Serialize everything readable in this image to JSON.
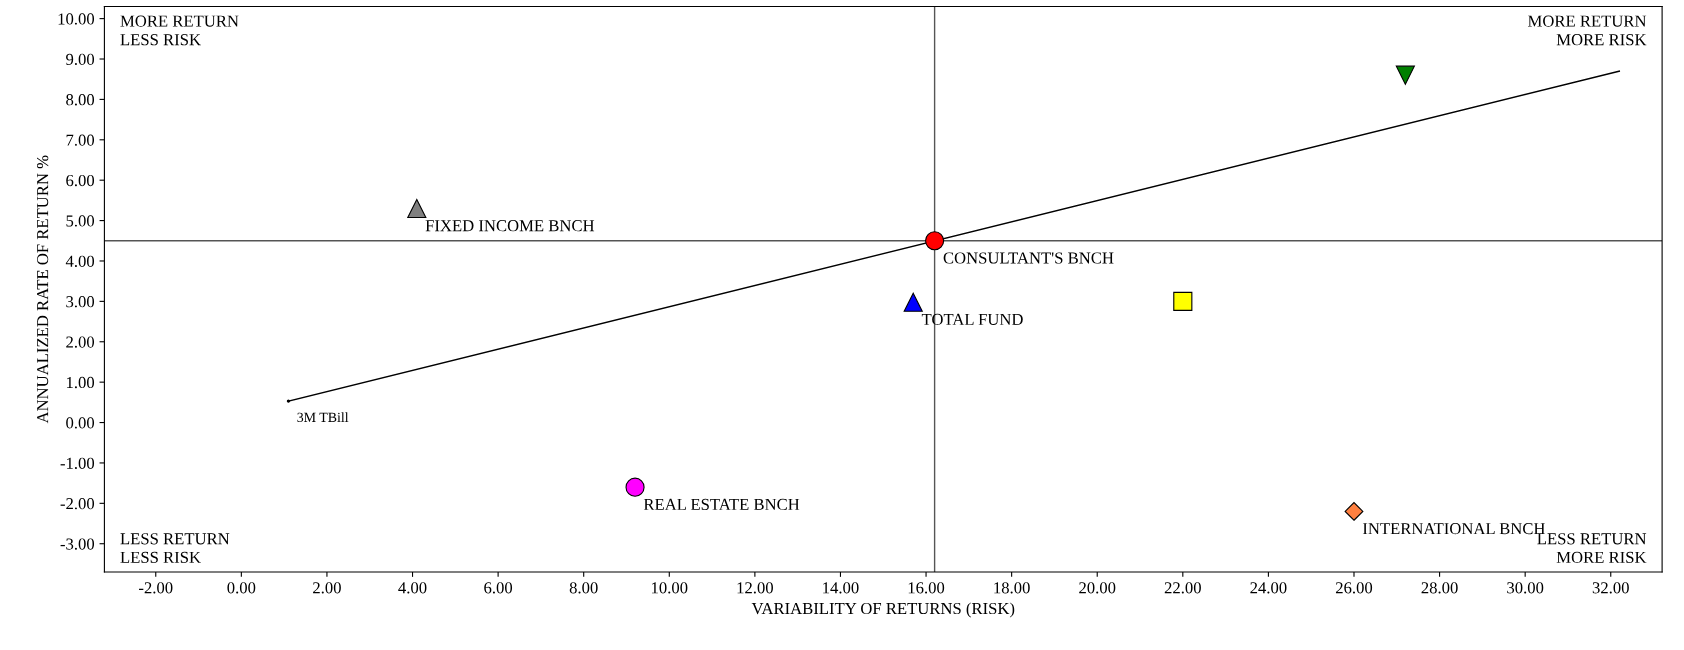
{
  "chart_data": {
    "type": "scatter",
    "xlabel": "VARIABILITY OF RETURNS (RISK)",
    "ylabel": "ANNUALIZED RATE OF RETURN %",
    "xlim": [
      -3.2,
      33.2
    ],
    "ylim": [
      -3.7,
      10.3
    ],
    "xticks": [
      {
        "value": -2,
        "label": "-2.00"
      },
      {
        "value": 0,
        "label": "0.00"
      },
      {
        "value": 2,
        "label": "2.00"
      },
      {
        "value": 4,
        "label": "4.00"
      },
      {
        "value": 6,
        "label": "6.00"
      },
      {
        "value": 8,
        "label": "8.00"
      },
      {
        "value": 10,
        "label": "10.00"
      },
      {
        "value": 12,
        "label": "12.00"
      },
      {
        "value": 14,
        "label": "14.00"
      },
      {
        "value": 16,
        "label": "16.00"
      },
      {
        "value": 18,
        "label": "18.00"
      },
      {
        "value": 20,
        "label": "20.00"
      },
      {
        "value": 22,
        "label": "22.00"
      },
      {
        "value": 24,
        "label": "24.00"
      },
      {
        "value": 26,
        "label": "26.00"
      },
      {
        "value": 28,
        "label": "28.00"
      },
      {
        "value": 30,
        "label": "30.00"
      },
      {
        "value": 32,
        "label": "32.00"
      }
    ],
    "yticks": [
      {
        "value": -3,
        "label": "-3.00"
      },
      {
        "value": -2,
        "label": "-2.00"
      },
      {
        "value": -1,
        "label": "-1.00"
      },
      {
        "value": 0,
        "label": "0.00"
      },
      {
        "value": 1,
        "label": "1.00"
      },
      {
        "value": 2,
        "label": "2.00"
      },
      {
        "value": 3,
        "label": "3.00"
      },
      {
        "value": 4,
        "label": "4.00"
      },
      {
        "value": 5,
        "label": "5.00"
      },
      {
        "value": 6,
        "label": "6.00"
      },
      {
        "value": 7,
        "label": "7.00"
      },
      {
        "value": 8,
        "label": "8.00"
      },
      {
        "value": 9,
        "label": "9.00"
      },
      {
        "value": 10,
        "label": "10.00"
      }
    ],
    "grid": false,
    "legend": false,
    "ref_lines": [
      {
        "axis": "y",
        "value": 4.5,
        "color": "#555555"
      },
      {
        "axis": "x",
        "value": 16.2,
        "color": "#555555"
      }
    ],
    "series": [
      {
        "type": "line",
        "x": [
          1.1,
          32.2
        ],
        "values": [
          0.53,
          8.7
        ],
        "color": "#000000",
        "marker": "none"
      },
      {
        "name": "3M TBill",
        "x": [
          1.1
        ],
        "values": [
          0.53
        ],
        "color": "#000000",
        "marker": "point"
      },
      {
        "name": "FIXED INCOME BNCH",
        "x": [
          4.1
        ],
        "values": [
          5.3
        ],
        "color": "#808080",
        "marker": "triangle"
      },
      {
        "name": "CONSULTANT'S BNCH",
        "x": [
          16.2
        ],
        "values": [
          4.5
        ],
        "color": "#ff0000",
        "marker": "circle"
      },
      {
        "name": "TOTAL FUND",
        "x": [
          15.7
        ],
        "values": [
          2.98
        ],
        "color": "#0000ff",
        "marker": "triangle"
      },
      {
        "x": [
          22.0
        ],
        "values": [
          3.0
        ],
        "color": "#ffff00",
        "marker": "square"
      },
      {
        "x": [
          27.2
        ],
        "values": [
          8.6
        ],
        "color": "#008000",
        "marker": "triangle_down"
      },
      {
        "name": "REAL ESTATE BNCH",
        "x": [
          9.2
        ],
        "values": [
          -1.6
        ],
        "color": "#ff00ff",
        "marker": "circle"
      },
      {
        "name": "INTERNATIONAL BNCH",
        "x": [
          26.0
        ],
        "values": [
          -2.2
        ],
        "color": "#ff8040",
        "marker": "diamond"
      }
    ],
    "annotations": [
      "MORE RETURN\nLESS RISK",
      "MORE RETURN\nMORE RISK",
      "LESS RETURN\nLESS RISK",
      "LESS RETURN\nMORE RISK"
    ]
  }
}
